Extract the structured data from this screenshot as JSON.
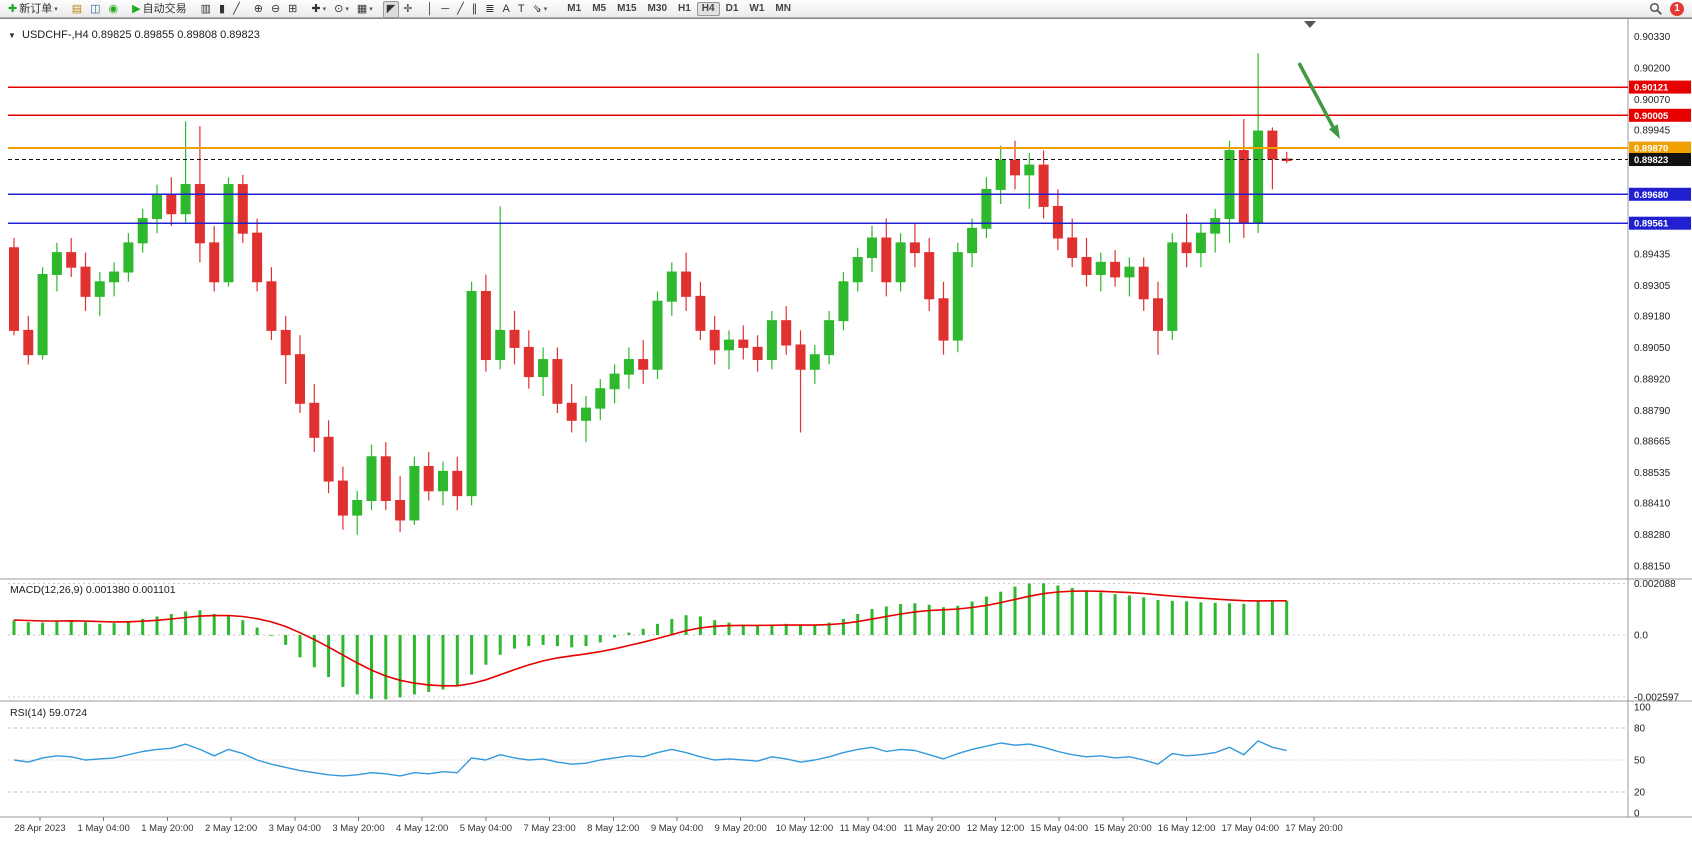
{
  "toolbar": {
    "notification_count": "1",
    "timeframes": [
      "M1",
      "M5",
      "M15",
      "M30",
      "H1",
      "H4",
      "D1",
      "W1",
      "MN"
    ],
    "active_timeframe": "H4",
    "items": [
      {
        "name": "new-order-button",
        "label": "新订单",
        "glyph": "✚",
        "glyph_color": "#1faa1f",
        "caret": true
      },
      {
        "sep": true
      },
      {
        "name": "market-watch-icon",
        "glyph": "▤",
        "glyph_color": "#b8860b"
      },
      {
        "name": "chart-windows-icon",
        "glyph": "◫",
        "glyph_color": "#336699"
      },
      {
        "name": "alerts-icon",
        "glyph": "◉",
        "glyph_color": "#1faa1f"
      },
      {
        "sep": true
      },
      {
        "name": "autotrading-button",
        "label": "自动交易",
        "glyph": "▶",
        "glyph_color": "#1faa1f"
      },
      {
        "sep": true
      },
      {
        "name": "bar-chart-icon",
        "glyph": "▥"
      },
      {
        "name": "candlestick-chart-icon",
        "glyph": "▮"
      },
      {
        "name": "line-chart-icon",
        "glyph": "╱"
      },
      {
        "sep": true
      },
      {
        "name": "zoom-in-icon",
        "glyph": "⊕"
      },
      {
        "name": "zoom-out-icon",
        "glyph": "⊖"
      },
      {
        "name": "tile-windows-icon",
        "glyph": "⊞"
      },
      {
        "sep": true
      },
      {
        "name": "new-chart-icon",
        "glyph": "✚",
        "caret": true
      },
      {
        "name": "periods-icon",
        "glyph": "⊙",
        "caret": true
      },
      {
        "name": "templates-icon",
        "glyph": "▦",
        "caret": true
      },
      {
        "sep": true
      },
      {
        "name": "cursor-icon",
        "glyph": "◤",
        "active": true
      },
      {
        "name": "crosshair-icon",
        "glyph": "✛"
      },
      {
        "sep": true
      },
      {
        "name": "vertical-line-icon",
        "glyph": "│"
      },
      {
        "name": "horizontal-line-icon",
        "glyph": "─"
      },
      {
        "name": "trendline-icon",
        "glyph": "╱"
      },
      {
        "name": "channel-icon",
        "glyph": "∥"
      },
      {
        "name": "fibonacci-icon",
        "glyph": "≣"
      },
      {
        "name": "text-icon",
        "glyph": "A"
      },
      {
        "name": "label-icon",
        "glyph": "T"
      },
      {
        "name": "arrow-tool-icon",
        "glyph": "⇘",
        "caret": true
      },
      {
        "sep": true
      }
    ]
  },
  "chart": {
    "title": "USDCHF-,H4",
    "open": "0.89825",
    "high": "0.89855",
    "low": "0.89808",
    "close": "0.89823",
    "price_axis_labels": [
      "0.90330",
      "0.90200",
      "0.90070",
      "0.89945",
      "0.89435",
      "0.89305",
      "0.89180",
      "0.89050",
      "0.88920",
      "0.88790",
      "0.88665",
      "0.88535",
      "0.88410",
      "0.88280",
      "0.88150"
    ],
    "price_lines": [
      {
        "value": "0.90121",
        "price": 0.90121,
        "color": "#e60000",
        "style": "solid",
        "width": 1.4
      },
      {
        "value": "0.90005",
        "price": 0.90005,
        "color": "#e60000",
        "style": "solid",
        "width": 1.4
      },
      {
        "value": "0.89870",
        "price": 0.8987,
        "color": "#f0a000",
        "style": "solid",
        "width": 2
      },
      {
        "value": "0.89823",
        "price": 0.89823,
        "color": "#111111",
        "style": "dashed",
        "width": 1
      },
      {
        "value": "0.89680",
        "price": 0.8968,
        "color": "#2020d0",
        "style": "solid",
        "width": 1.4
      },
      {
        "value": "0.89561",
        "price": 0.89561,
        "color": "#2020d0",
        "style": "solid",
        "width": 1.4
      }
    ],
    "time_axis_labels": [
      "28 Apr 2023",
      "1 May 04:00",
      "1 May 20:00",
      "2 May 12:00",
      "3 May 04:00",
      "3 May 20:00",
      "4 May 12:00",
      "5 May 04:00",
      "7 May 23:00",
      "8 May 12:00",
      "9 May 04:00",
      "9 May 20:00",
      "10 May 12:00",
      "11 May 04:00",
      "11 May 20:00",
      "12 May 12:00",
      "15 May 04:00",
      "15 May 20:00",
      "16 May 12:00",
      "17 May 04:00",
      "17 May 20:00"
    ],
    "annotation_arrow_color": "#3f9b3f"
  },
  "chart_data": {
    "type": "candlestick",
    "symbol": "USDCHF-",
    "timeframe": "H4",
    "price_range": [
      0.8813,
      0.9036
    ],
    "up_color": "#2eb82e",
    "down_color": "#e03131",
    "candles": [
      [
        0.8946,
        0.895,
        0.891,
        0.8912
      ],
      [
        0.8912,
        0.8918,
        0.8898,
        0.8902
      ],
      [
        0.8902,
        0.8938,
        0.89,
        0.8935
      ],
      [
        0.8935,
        0.8948,
        0.8928,
        0.8944
      ],
      [
        0.8944,
        0.895,
        0.8934,
        0.8938
      ],
      [
        0.8938,
        0.8944,
        0.892,
        0.8926
      ],
      [
        0.8926,
        0.8936,
        0.8918,
        0.8932
      ],
      [
        0.8932,
        0.894,
        0.8926,
        0.8936
      ],
      [
        0.8936,
        0.8952,
        0.8932,
        0.8948
      ],
      [
        0.8948,
        0.8962,
        0.8944,
        0.8958
      ],
      [
        0.8958,
        0.8972,
        0.8952,
        0.8968
      ],
      [
        0.8968,
        0.8975,
        0.8955,
        0.896
      ],
      [
        0.896,
        0.8998,
        0.8956,
        0.8972
      ],
      [
        0.8972,
        0.8996,
        0.894,
        0.8948
      ],
      [
        0.8948,
        0.8955,
        0.8928,
        0.8932
      ],
      [
        0.8932,
        0.8975,
        0.893,
        0.8972
      ],
      [
        0.8972,
        0.8976,
        0.8948,
        0.8952
      ],
      [
        0.8952,
        0.8958,
        0.8928,
        0.8932
      ],
      [
        0.8932,
        0.8938,
        0.8908,
        0.8912
      ],
      [
        0.8912,
        0.8918,
        0.889,
        0.8902
      ],
      [
        0.8902,
        0.891,
        0.8878,
        0.8882
      ],
      [
        0.8882,
        0.889,
        0.8862,
        0.8868
      ],
      [
        0.8868,
        0.8875,
        0.8845,
        0.885
      ],
      [
        0.885,
        0.8856,
        0.883,
        0.8836
      ],
      [
        0.8836,
        0.8846,
        0.8828,
        0.8842
      ],
      [
        0.8842,
        0.8865,
        0.8838,
        0.886
      ],
      [
        0.886,
        0.8866,
        0.8838,
        0.8842
      ],
      [
        0.8842,
        0.8852,
        0.8829,
        0.8834
      ],
      [
        0.8834,
        0.886,
        0.8832,
        0.8856
      ],
      [
        0.8856,
        0.8862,
        0.8842,
        0.8846
      ],
      [
        0.8846,
        0.8858,
        0.884,
        0.8854
      ],
      [
        0.8854,
        0.886,
        0.8838,
        0.8844
      ],
      [
        0.8844,
        0.8932,
        0.884,
        0.8928
      ],
      [
        0.8928,
        0.8935,
        0.8895,
        0.89
      ],
      [
        0.89,
        0.8963,
        0.8896,
        0.8912
      ],
      [
        0.8912,
        0.892,
        0.8898,
        0.8905
      ],
      [
        0.8905,
        0.8912,
        0.8888,
        0.8893
      ],
      [
        0.8893,
        0.8905,
        0.8885,
        0.89
      ],
      [
        0.89,
        0.8905,
        0.8878,
        0.8882
      ],
      [
        0.8882,
        0.889,
        0.887,
        0.8875
      ],
      [
        0.8875,
        0.8885,
        0.8866,
        0.888
      ],
      [
        0.888,
        0.8892,
        0.8875,
        0.8888
      ],
      [
        0.8888,
        0.8898,
        0.8882,
        0.8894
      ],
      [
        0.8894,
        0.8905,
        0.8888,
        0.89
      ],
      [
        0.89,
        0.8908,
        0.889,
        0.8896
      ],
      [
        0.8896,
        0.8928,
        0.8892,
        0.8924
      ],
      [
        0.8924,
        0.894,
        0.8918,
        0.8936
      ],
      [
        0.8936,
        0.8944,
        0.892,
        0.8926
      ],
      [
        0.8926,
        0.8932,
        0.8908,
        0.8912
      ],
      [
        0.8912,
        0.8918,
        0.8898,
        0.8904
      ],
      [
        0.8904,
        0.8912,
        0.8896,
        0.8908
      ],
      [
        0.8908,
        0.8914,
        0.89,
        0.8905
      ],
      [
        0.8905,
        0.891,
        0.8895,
        0.89
      ],
      [
        0.89,
        0.892,
        0.8896,
        0.8916
      ],
      [
        0.8916,
        0.8922,
        0.8902,
        0.8906
      ],
      [
        0.8906,
        0.8912,
        0.887,
        0.8896
      ],
      [
        0.8896,
        0.8906,
        0.889,
        0.8902
      ],
      [
        0.8902,
        0.892,
        0.8898,
        0.8916
      ],
      [
        0.8916,
        0.8936,
        0.8912,
        0.8932
      ],
      [
        0.8932,
        0.8946,
        0.8928,
        0.8942
      ],
      [
        0.8942,
        0.8955,
        0.8936,
        0.895
      ],
      [
        0.895,
        0.8958,
        0.8926,
        0.8932
      ],
      [
        0.8932,
        0.8952,
        0.8928,
        0.8948
      ],
      [
        0.8948,
        0.8956,
        0.8938,
        0.8944
      ],
      [
        0.8944,
        0.895,
        0.892,
        0.8925
      ],
      [
        0.8925,
        0.8932,
        0.8902,
        0.8908
      ],
      [
        0.8908,
        0.8948,
        0.8903,
        0.8944
      ],
      [
        0.8944,
        0.8958,
        0.8938,
        0.8954
      ],
      [
        0.8954,
        0.8975,
        0.895,
        0.897
      ],
      [
        0.897,
        0.8988,
        0.8964,
        0.8982
      ],
      [
        0.8982,
        0.899,
        0.897,
        0.8976
      ],
      [
        0.8976,
        0.8985,
        0.8962,
        0.898
      ],
      [
        0.898,
        0.8986,
        0.8958,
        0.8963
      ],
      [
        0.8963,
        0.897,
        0.8945,
        0.895
      ],
      [
        0.895,
        0.8958,
        0.8938,
        0.8942
      ],
      [
        0.8942,
        0.895,
        0.893,
        0.8935
      ],
      [
        0.8935,
        0.8944,
        0.8928,
        0.894
      ],
      [
        0.894,
        0.8945,
        0.893,
        0.8934
      ],
      [
        0.8934,
        0.8942,
        0.8926,
        0.8938
      ],
      [
        0.8938,
        0.8942,
        0.892,
        0.8925
      ],
      [
        0.8925,
        0.8932,
        0.8902,
        0.8912
      ],
      [
        0.8912,
        0.8952,
        0.8908,
        0.8948
      ],
      [
        0.8948,
        0.896,
        0.8938,
        0.8944
      ],
      [
        0.8944,
        0.8956,
        0.8938,
        0.8952
      ],
      [
        0.8952,
        0.8962,
        0.8944,
        0.8958
      ],
      [
        0.8958,
        0.899,
        0.8948,
        0.8986
      ],
      [
        0.8986,
        0.8999,
        0.895,
        0.8956
      ],
      [
        0.8956,
        0.9026,
        0.8952,
        0.8994
      ],
      [
        0.8994,
        0.89955,
        0.897,
        0.89825
      ],
      [
        0.89825,
        0.89855,
        0.89808,
        0.89823
      ]
    ],
    "indicators": [
      {
        "type": "macd",
        "label": "MACD(12,26,9)",
        "main_value": "0.001380",
        "signal_value": "0.001101",
        "scale_labels": [
          "0.002088",
          "0.0",
          "-0.002597"
        ],
        "scale_values": [
          0.002088,
          0.0,
          -0.002597
        ],
        "histogram_color": "#2eb82e",
        "signal_color": "#e60000",
        "histogram": [
          0.0006,
          0.00052,
          0.0005,
          0.00056,
          0.0006,
          0.00052,
          0.00045,
          0.00048,
          0.00055,
          0.00065,
          0.00075,
          0.00085,
          0.00095,
          0.001,
          0.00085,
          0.0008,
          0.0006,
          0.0003,
          0.0,
          -0.0004,
          -0.0009,
          -0.0013,
          -0.0017,
          -0.0021,
          -0.0024,
          -0.00258,
          -0.0026,
          -0.00252,
          -0.0024,
          -0.0023,
          -0.0022,
          -0.00205,
          -0.0016,
          -0.0012,
          -0.0008,
          -0.00055,
          -0.00045,
          -0.0004,
          -0.00045,
          -0.0005,
          -0.00045,
          -0.0003,
          -0.0001,
          0.0001,
          0.00025,
          0.00045,
          0.00065,
          0.0008,
          0.00075,
          0.0006,
          0.0005,
          0.00042,
          0.00038,
          0.00042,
          0.00045,
          0.00038,
          0.0004,
          0.0005,
          0.00065,
          0.00085,
          0.00105,
          0.00115,
          0.00125,
          0.00128,
          0.00122,
          0.00112,
          0.00118,
          0.00135,
          0.00155,
          0.00175,
          0.00195,
          0.00208,
          0.00209,
          0.002,
          0.0019,
          0.0018,
          0.00172,
          0.00165,
          0.0016,
          0.00152,
          0.00142,
          0.00138,
          0.00136,
          0.00132,
          0.0013,
          0.00128,
          0.00126,
          0.00135,
          0.0014,
          0.00138
        ]
      },
      {
        "type": "rsi",
        "label": "RSI(14)",
        "value": "59.0724",
        "scale_labels": [
          "100",
          "80",
          "50",
          "20",
          "0"
        ],
        "levels": [
          80,
          50,
          20
        ],
        "line_color": "#3399dd",
        "series": [
          50,
          48,
          52,
          54,
          53,
          50,
          51,
          52,
          55,
          58,
          60,
          61,
          65,
          60,
          54,
          60,
          56,
          50,
          46,
          43,
          40,
          38,
          36,
          35,
          36,
          38,
          37,
          35,
          38,
          37,
          39,
          38,
          52,
          50,
          55,
          52,
          50,
          51,
          48,
          46,
          47,
          50,
          52,
          54,
          53,
          57,
          60,
          57,
          53,
          50,
          51,
          50,
          49,
          53,
          51,
          48,
          50,
          53,
          57,
          60,
          62,
          58,
          60,
          59,
          55,
          51,
          56,
          60,
          63,
          66,
          64,
          65,
          62,
          58,
          55,
          53,
          54,
          52,
          53,
          50,
          46,
          56,
          54,
          55,
          57,
          62,
          55,
          68,
          62,
          59
        ]
      }
    ]
  }
}
